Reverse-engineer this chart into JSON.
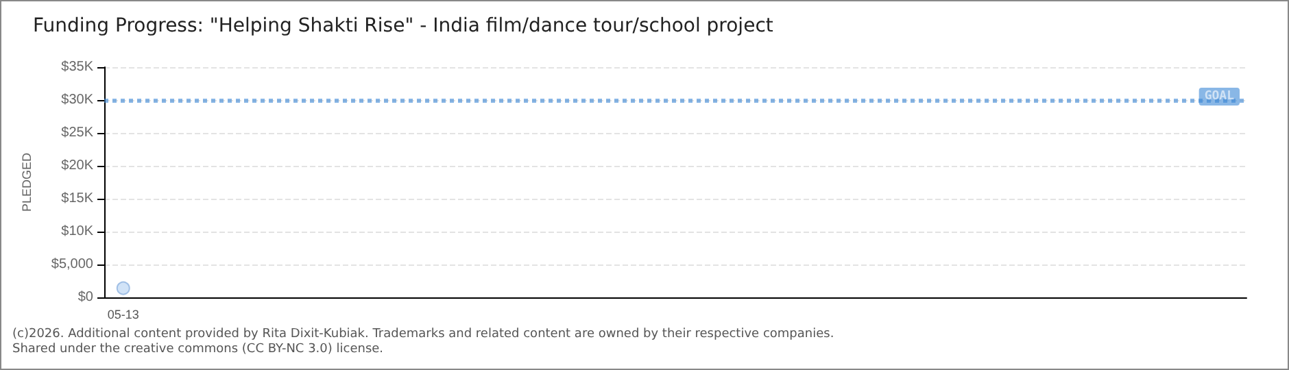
{
  "chart_data": {
    "type": "scatter",
    "title": "Funding Progress: \"Helping Shakti Rise\" - India film/dance tour/school project",
    "ylabel": "PLEDGED",
    "categories": [
      "05-13",
      null,
      null,
      null,
      null,
      null,
      null,
      null,
      null,
      null,
      null,
      null,
      null,
      null,
      null,
      null,
      null,
      null,
      null,
      null,
      null,
      null,
      null,
      null,
      null,
      null,
      null,
      null,
      null,
      null
    ],
    "series": [
      {
        "color": "#c6dcf5",
        "values": [
          1400,
          null,
          null,
          null,
          null,
          null,
          null,
          null,
          null,
          null,
          null,
          null,
          null,
          null,
          null,
          null,
          null,
          null,
          null,
          null,
          null,
          null,
          null,
          null,
          null,
          null,
          null,
          null,
          null,
          null
        ]
      }
    ],
    "ylim": [
      0,
      35000
    ],
    "yticks": [
      {
        "value": 0,
        "label": "$0"
      },
      {
        "value": 5000,
        "label": "$5,000"
      },
      {
        "value": 10000,
        "label": "$10K"
      },
      {
        "value": 15000,
        "label": "$15K"
      },
      {
        "value": 20000,
        "label": "$20K"
      },
      {
        "value": 25000,
        "label": "$25K"
      },
      {
        "value": 30000,
        "label": "$30K"
      },
      {
        "value": 35000,
        "label": "$35K"
      }
    ],
    "ref_lines": [
      {
        "axis": "y",
        "value": 30000,
        "label": "GOAL",
        "color": "#3a87d6",
        "line_style": "dotted"
      }
    ],
    "grid": "y",
    "marker": "circle",
    "annotations": [
      "(c)2026. Additional content provided by Rita Dixit-Kubiak. Trademarks and related content are owned by their respective companies.",
      "Shared under the creative commons (CC BY-NC 3.0) license."
    ]
  }
}
